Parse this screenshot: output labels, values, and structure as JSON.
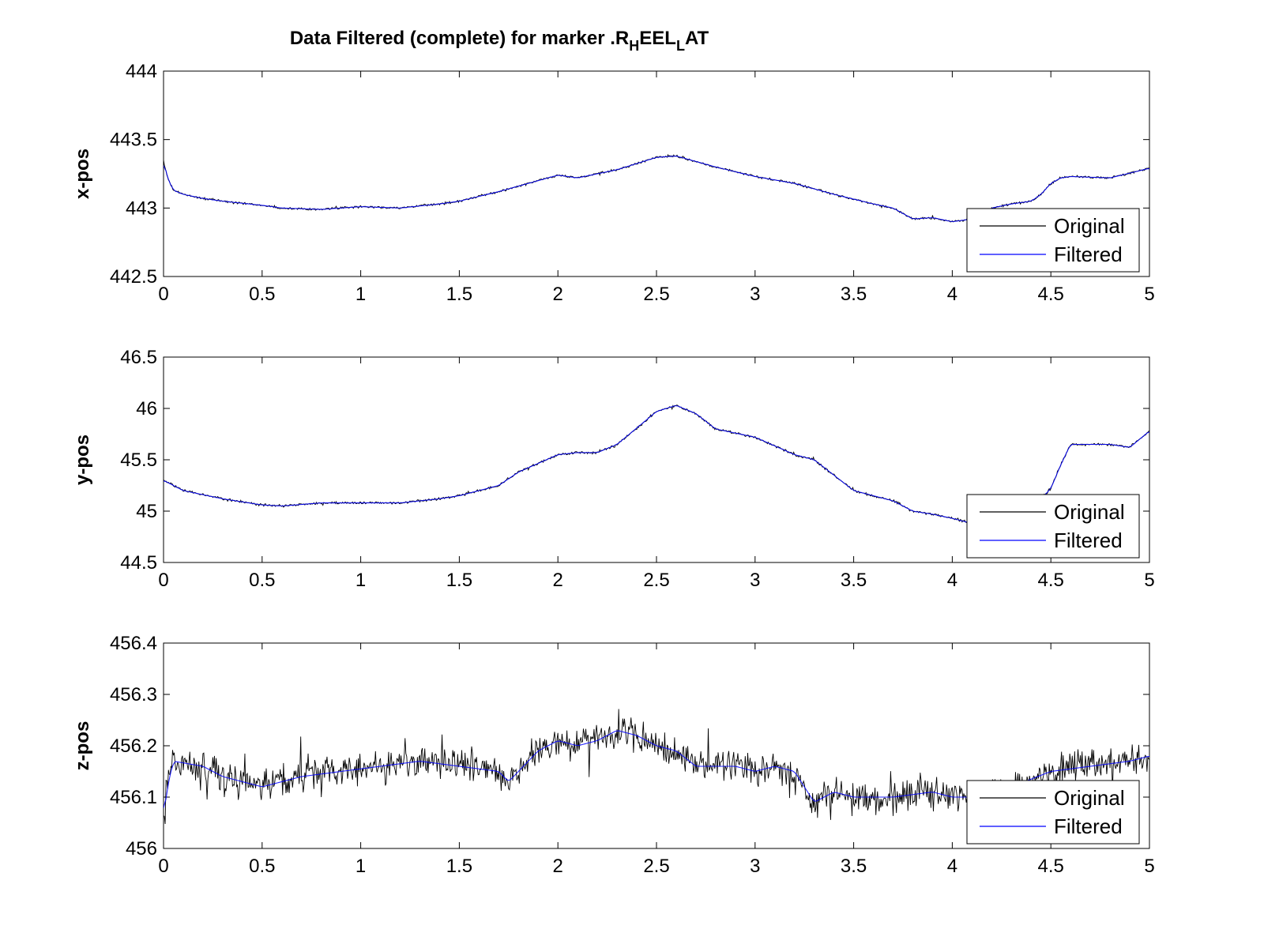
{
  "figure": {
    "title_main": "Data Filtered (complete) for marker .R",
    "title_sub1": "H",
    "title_mid": "EEL",
    "title_sub2": "L",
    "title_end": "AT"
  },
  "colors": {
    "original": "#000000",
    "filtered": "#0000ff",
    "axes": "#000000",
    "background": "#ffffff"
  },
  "chart_data": [
    {
      "type": "line",
      "ylabel": "x-pos",
      "xlim": [
        0,
        5
      ],
      "ylim": [
        442.5,
        444
      ],
      "xticks": [
        "0",
        "0.5",
        "1",
        "1.5",
        "2",
        "2.5",
        "3",
        "3.5",
        "4",
        "4.5",
        "5"
      ],
      "yticks": [
        "442.5",
        "443",
        "443.5",
        "444"
      ],
      "legend": [
        "Original",
        "Filtered"
      ],
      "legend_position": "bottom-right",
      "noise": 0.012,
      "x": [
        0,
        0.02,
        0.05,
        0.1,
        0.2,
        0.3,
        0.5,
        0.6,
        0.8,
        1.0,
        1.2,
        1.4,
        1.5,
        1.7,
        1.9,
        2.0,
        2.1,
        2.3,
        2.5,
        2.6,
        2.8,
        3.0,
        3.2,
        3.4,
        3.6,
        3.7,
        3.8,
        3.9,
        4.0,
        4.1,
        4.2,
        4.3,
        4.4,
        4.45,
        4.5,
        4.55,
        4.6,
        4.8,
        5.0
      ],
      "series": [
        {
          "name": "Original",
          "values": [
            443.35,
            443.22,
            443.13,
            443.1,
            443.07,
            443.05,
            443.02,
            443.0,
            442.99,
            443.01,
            443.0,
            443.03,
            443.05,
            443.12,
            443.2,
            443.24,
            443.22,
            443.28,
            443.37,
            443.38,
            443.3,
            443.23,
            443.18,
            443.1,
            443.03,
            443.0,
            442.92,
            442.93,
            442.9,
            442.92,
            443.0,
            443.03,
            443.05,
            443.1,
            443.18,
            443.22,
            443.23,
            443.22,
            443.29
          ]
        },
        {
          "name": "Filtered",
          "values": [
            443.35,
            443.22,
            443.13,
            443.1,
            443.07,
            443.05,
            443.02,
            443.0,
            442.99,
            443.01,
            443.0,
            443.03,
            443.05,
            443.12,
            443.2,
            443.24,
            443.22,
            443.28,
            443.37,
            443.38,
            443.3,
            443.23,
            443.18,
            443.1,
            443.03,
            443.0,
            442.92,
            442.93,
            442.9,
            442.92,
            443.0,
            443.03,
            443.05,
            443.1,
            443.18,
            443.22,
            443.23,
            443.22,
            443.29
          ]
        }
      ]
    },
    {
      "type": "line",
      "ylabel": "y-pos",
      "xlim": [
        0,
        5
      ],
      "ylim": [
        44.5,
        46.5
      ],
      "xticks": [
        "0",
        "0.5",
        "1",
        "1.5",
        "2",
        "2.5",
        "3",
        "3.5",
        "4",
        "4.5",
        "5"
      ],
      "yticks": [
        "44.5",
        "45",
        "45.5",
        "46",
        "46.5"
      ],
      "legend": [
        "Original",
        "Filtered"
      ],
      "legend_position": "bottom-right",
      "noise": 0.018,
      "x": [
        0,
        0.1,
        0.3,
        0.5,
        0.6,
        0.8,
        1.0,
        1.2,
        1.4,
        1.5,
        1.7,
        1.8,
        2.0,
        2.1,
        2.2,
        2.3,
        2.5,
        2.6,
        2.7,
        2.8,
        3.0,
        3.2,
        3.3,
        3.5,
        3.7,
        3.8,
        3.9,
        4.0,
        4.1,
        4.2,
        4.4,
        4.45,
        4.5,
        4.55,
        4.6,
        4.8,
        4.9,
        5.0
      ],
      "series": [
        {
          "name": "Original",
          "values": [
            45.3,
            45.2,
            45.12,
            45.06,
            45.05,
            45.08,
            45.08,
            45.08,
            45.12,
            45.15,
            45.25,
            45.38,
            45.55,
            45.57,
            45.57,
            45.65,
            45.97,
            46.03,
            45.95,
            45.8,
            45.72,
            45.55,
            45.5,
            45.2,
            45.1,
            45.0,
            44.97,
            44.93,
            44.88,
            44.9,
            45.05,
            45.12,
            45.22,
            45.45,
            45.65,
            45.65,
            45.62,
            45.78
          ]
        },
        {
          "name": "Filtered",
          "values": [
            45.3,
            45.2,
            45.12,
            45.06,
            45.05,
            45.08,
            45.08,
            45.08,
            45.12,
            45.15,
            45.25,
            45.38,
            45.55,
            45.57,
            45.57,
            45.65,
            45.97,
            46.03,
            45.95,
            45.8,
            45.72,
            45.55,
            45.5,
            45.2,
            45.1,
            45.0,
            44.97,
            44.93,
            44.88,
            44.9,
            45.05,
            45.12,
            45.22,
            45.45,
            45.65,
            45.65,
            45.62,
            45.78
          ]
        }
      ]
    },
    {
      "type": "line",
      "ylabel": "z-pos",
      "xlim": [
        0,
        5
      ],
      "ylim": [
        456,
        456.4
      ],
      "xticks": [
        "0",
        "0.5",
        "1",
        "1.5",
        "2",
        "2.5",
        "3",
        "3.5",
        "4",
        "4.5",
        "5"
      ],
      "yticks": [
        "456",
        "456.1",
        "456.2",
        "456.3",
        "456.4"
      ],
      "legend": [
        "Original",
        "Filtered"
      ],
      "legend_position": "bottom-right",
      "noise": 0.045,
      "x": [
        0,
        0.02,
        0.05,
        0.2,
        0.3,
        0.5,
        0.7,
        0.9,
        1.1,
        1.3,
        1.5,
        1.7,
        1.75,
        1.9,
        2.0,
        2.1,
        2.2,
        2.3,
        2.4,
        2.5,
        2.6,
        2.7,
        2.9,
        3.0,
        3.1,
        3.2,
        3.3,
        3.4,
        3.5,
        3.7,
        3.9,
        4.0,
        4.1,
        4.3,
        4.5,
        4.7,
        4.9,
        5.0
      ],
      "series": [
        {
          "name": "Original",
          "values": [
            456.06,
            456.12,
            456.17,
            456.16,
            456.14,
            456.12,
            456.14,
            456.15,
            456.16,
            456.17,
            456.16,
            456.15,
            456.13,
            456.19,
            456.21,
            456.2,
            456.21,
            456.23,
            456.22,
            456.2,
            456.19,
            456.16,
            456.16,
            456.15,
            456.16,
            456.15,
            456.09,
            456.11,
            456.1,
            456.1,
            456.11,
            456.1,
            456.1,
            456.12,
            456.15,
            456.16,
            456.17,
            456.18
          ]
        },
        {
          "name": "Filtered",
          "values": [
            456.06,
            456.12,
            456.17,
            456.16,
            456.14,
            456.12,
            456.14,
            456.15,
            456.16,
            456.17,
            456.16,
            456.15,
            456.13,
            456.19,
            456.21,
            456.2,
            456.21,
            456.23,
            456.22,
            456.2,
            456.19,
            456.16,
            456.16,
            456.15,
            456.16,
            456.15,
            456.09,
            456.11,
            456.1,
            456.1,
            456.11,
            456.1,
            456.1,
            456.12,
            456.15,
            456.16,
            456.17,
            456.18
          ]
        }
      ]
    }
  ]
}
